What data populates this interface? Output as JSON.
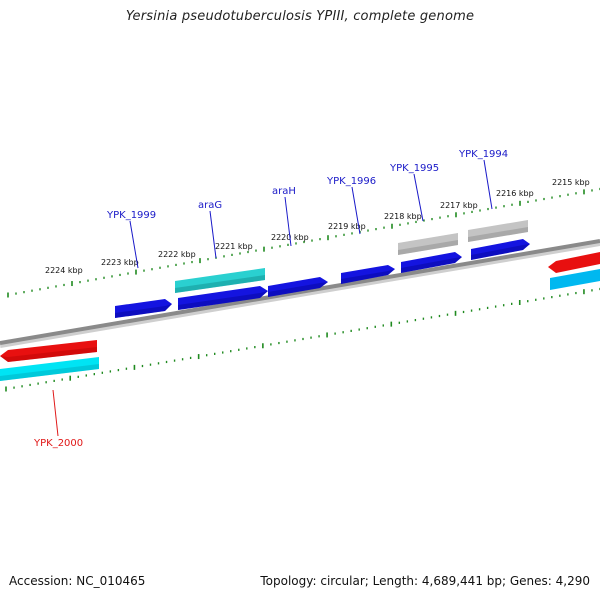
{
  "title": "Yersinia pseudotuberculosis YPIII, complete genome",
  "footer": {
    "accession": "Accession: NC_010465",
    "summary": "Topology: circular; Length: 4,689,441 bp; Genes: 4,290"
  },
  "kbp_labels": [
    "2224 kbp",
    "2223 kbp",
    "2222 kbp",
    "2221 kbp",
    "2220 kbp",
    "2219 kbp",
    "2218 kbp",
    "2217 kbp",
    "2216 kbp",
    "2215 kbp"
  ],
  "gene_labels": [
    {
      "text": "YPK_1999",
      "color": "#1a1ac8"
    },
    {
      "text": "araG",
      "color": "#1a1ac8"
    },
    {
      "text": "araH",
      "color": "#1a1ac8"
    },
    {
      "text": "YPK_1996",
      "color": "#1a1ac8"
    },
    {
      "text": "YPK_1995",
      "color": "#1a1ac8"
    },
    {
      "text": "YPK_1994",
      "color": "#1a1ac8"
    },
    {
      "text": "YPK_2000",
      "color": "#e01818"
    }
  ],
  "colors": {
    "backbone": "#8a8a8a",
    "tick": "#1f8a1f",
    "forward_cds": "#1414e0",
    "reverse_cds": "#e81010",
    "cyan_feature": "#00e0f0",
    "teal_feature": "#18b8b8",
    "gray_feature": "#b0b0b0"
  }
}
